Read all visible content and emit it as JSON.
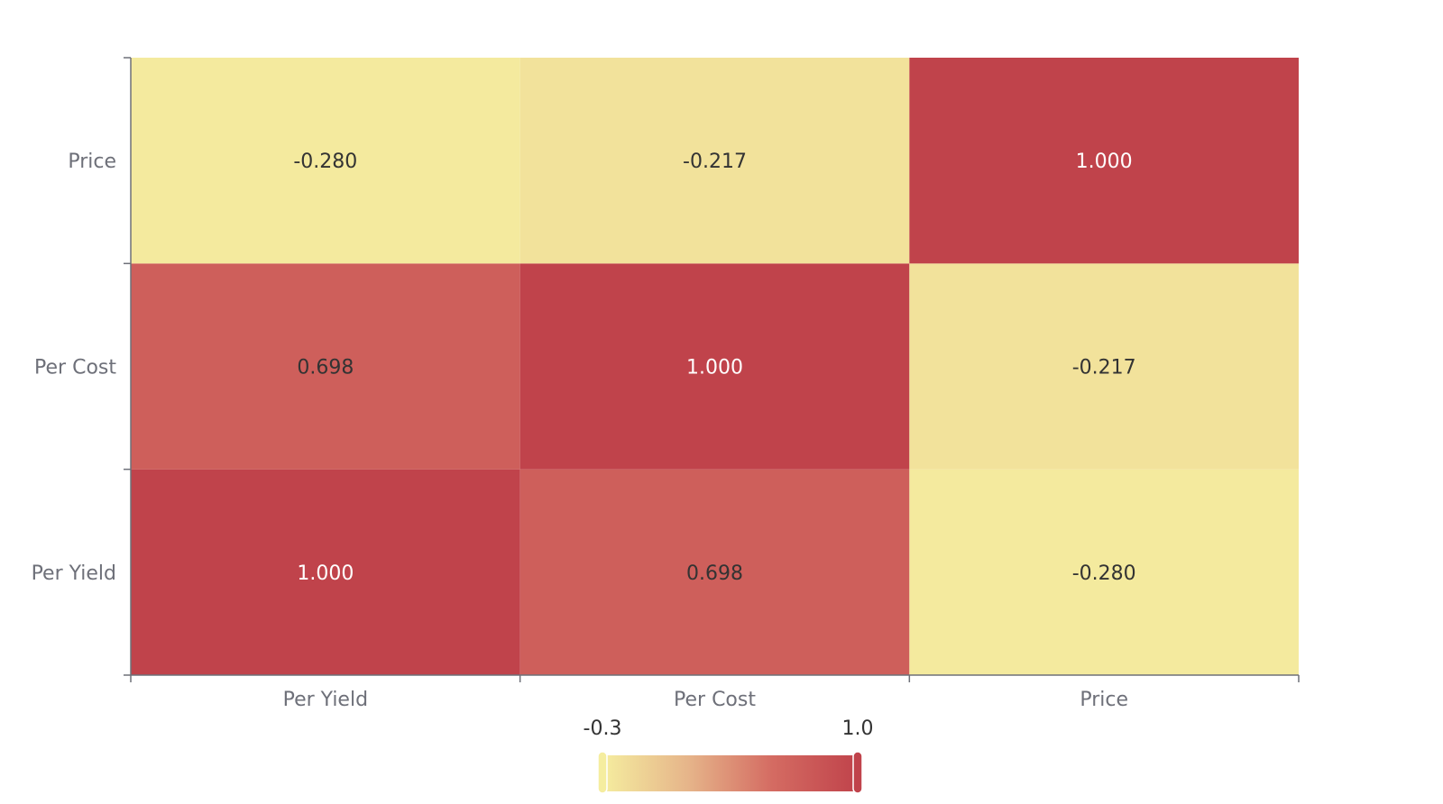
{
  "chart_data": {
    "type": "heatmap",
    "x_categories": [
      "Per Yield",
      "Per Cost",
      "Price"
    ],
    "y_categories": [
      "Per Yield",
      "Per Cost",
      "Price"
    ],
    "cells": [
      {
        "x": "Per Yield",
        "y": "Per Yield",
        "value": 1.0,
        "label": "1.000"
      },
      {
        "x": "Per Yield",
        "y": "Per Cost",
        "value": 0.698,
        "label": "0.698"
      },
      {
        "x": "Per Yield",
        "y": "Price",
        "value": -0.28,
        "label": "-0.280"
      },
      {
        "x": "Per Cost",
        "y": "Per Yield",
        "value": 0.698,
        "label": "0.698"
      },
      {
        "x": "Per Cost",
        "y": "Per Cost",
        "value": 1.0,
        "label": "1.000"
      },
      {
        "x": "Per Cost",
        "y": "Price",
        "value": -0.217,
        "label": "-0.217"
      },
      {
        "x": "Price",
        "y": "Per Yield",
        "value": -0.28,
        "label": "-0.280"
      },
      {
        "x": "Price",
        "y": "Per Cost",
        "value": -0.217,
        "label": "-0.217"
      },
      {
        "x": "Price",
        "y": "Price",
        "value": 1.0,
        "label": "1.000"
      }
    ],
    "visual_map": {
      "min": -0.3,
      "max": 1.0,
      "min_label": "-0.3",
      "max_label": "1.0",
      "colors": [
        "#f5ed9f",
        "#e6b58a",
        "#d46b62",
        "#c0434b"
      ],
      "placement": "bottom-center"
    },
    "title": "",
    "xlabel": "",
    "ylabel": ""
  }
}
